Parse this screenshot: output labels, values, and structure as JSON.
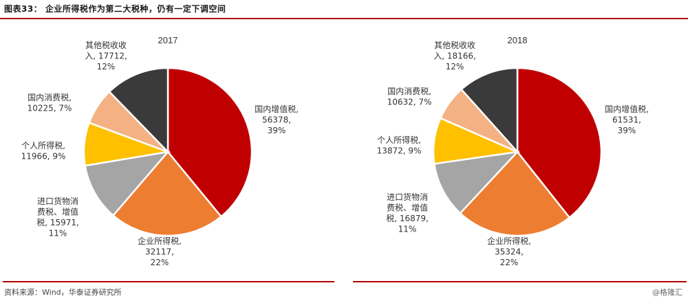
{
  "header": {
    "title": "图表33：  企业所得税作为第二大税种，仍有一定下调空间"
  },
  "footer": {
    "source": "资料来源：Wind，华泰证券研究所",
    "watermark": "@格隆汇"
  },
  "colors": {
    "rule": "#b00000",
    "国内增值税": "#c00000",
    "企业所得税": "#ed7d31",
    "进口货物消费税、增值税": "#a5a5a5",
    "个人所得税": "#ffc000",
    "国内消费税": "#f4b183",
    "其他税收收入": "#3a3a3a"
  },
  "chart_data": [
    {
      "type": "pie",
      "title": "2017",
      "slices": [
        {
          "name": "国内增值税",
          "value": 56378,
          "percent": "39%",
          "label_lines": [
            "国内增值税,",
            "56378,",
            "39%"
          ]
        },
        {
          "name": "企业所得税",
          "value": 32117,
          "percent": "22%",
          "label_lines": [
            "企业所得税,",
            "32117,",
            "22%"
          ]
        },
        {
          "name": "进口货物消费税、增值税",
          "value": 15971,
          "percent": "11%",
          "label_lines": [
            "进口货物消",
            "费税、增值",
            "税, 15971,",
            "11%"
          ]
        },
        {
          "name": "个人所得税",
          "value": 11966,
          "percent": "9%",
          "label_lines": [
            "个人所得税,",
            "11966, 9%"
          ]
        },
        {
          "name": "国内消费税",
          "value": 10225,
          "percent": "7%",
          "label_lines": [
            "国内消费税,",
            "10225, 7%"
          ]
        },
        {
          "name": "其他税收收入",
          "value": 17712,
          "percent": "12%",
          "label_lines": [
            "其他税收收",
            "入, 17712,",
            "12%"
          ]
        }
      ]
    },
    {
      "type": "pie",
      "title": "2018",
      "slices": [
        {
          "name": "国内增值税",
          "value": 61531,
          "percent": "39%",
          "label_lines": [
            "国内增值税,",
            "61531,",
            "39%"
          ]
        },
        {
          "name": "企业所得税",
          "value": 35324,
          "percent": "22%",
          "label_lines": [
            "企业所得税,",
            "35324,",
            "22%"
          ]
        },
        {
          "name": "进口货物消费税、增值税",
          "value": 16879,
          "percent": "11%",
          "label_lines": [
            "进口货物消",
            "费税、增值",
            "税, 16879,",
            "11%"
          ]
        },
        {
          "name": "个人所得税",
          "value": 13872,
          "percent": "9%",
          "label_lines": [
            "个人所得税,",
            "13872, 9%"
          ]
        },
        {
          "name": "国内消费税",
          "value": 10632,
          "percent": "7%",
          "label_lines": [
            "国内消费税,",
            "10632, 7%"
          ]
        },
        {
          "name": "其他税收收入",
          "value": 18166,
          "percent": "12%",
          "label_lines": [
            "其他税收收",
            "入, 18166,",
            "12%"
          ]
        }
      ]
    }
  ]
}
